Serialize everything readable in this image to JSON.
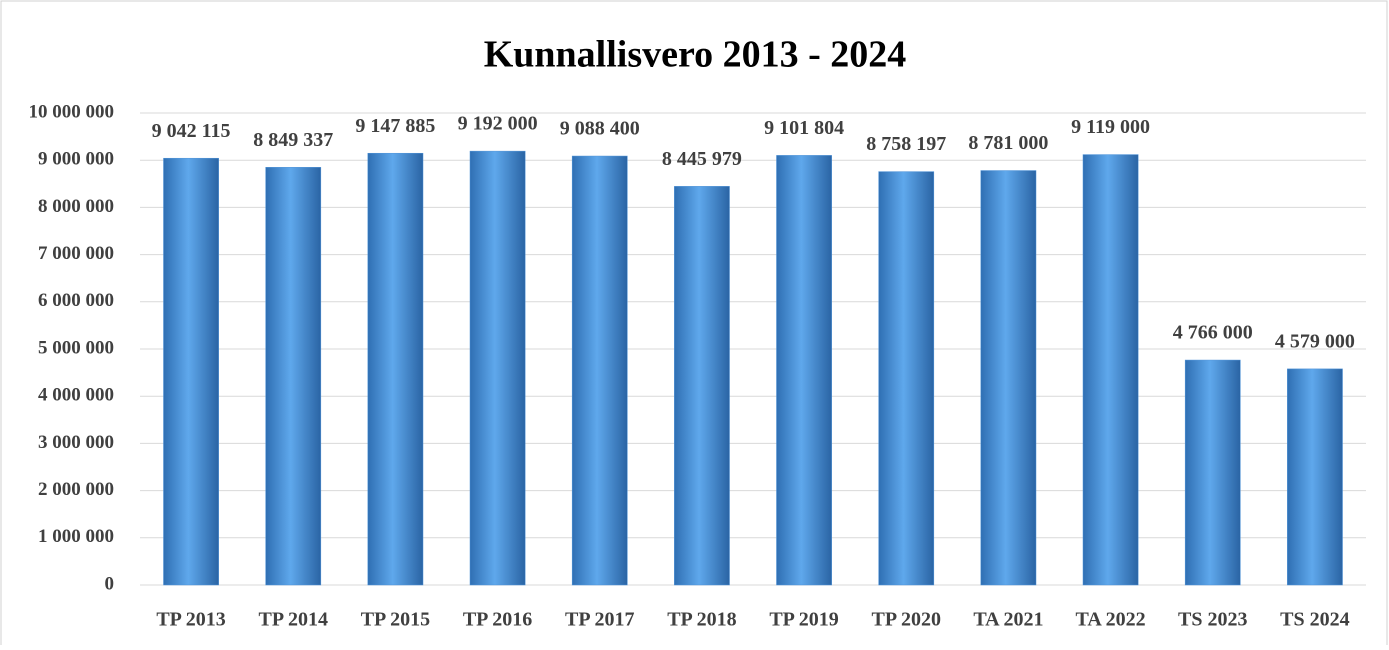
{
  "chart_data": {
    "type": "bar",
    "title": "Kunnallisvero 2013 - 2024",
    "categories": [
      "TP 2013",
      "TP 2014",
      "TP 2015",
      "TP 2016",
      "TP 2017",
      "TP 2018",
      "TP 2019",
      "TP 2020",
      "TA 2021",
      "TA 2022",
      "TS 2023",
      "TS 2024"
    ],
    "values": [
      9042115,
      8849337,
      9147885,
      9192000,
      9088400,
      8445979,
      9101804,
      8758197,
      8781000,
      9119000,
      4766000,
      4579000
    ],
    "value_labels": [
      "9 042 115",
      "8 849 337",
      "9 147 885",
      "9 192 000",
      "9 088 400",
      "8 445 979",
      "9 101 804",
      "8 758 197",
      "8 781 000",
      "9 119 000",
      "4 766 000",
      "4 579 000"
    ],
    "color": "#4f93d8",
    "ylim": [
      0,
      10000000
    ],
    "yticks": [
      0,
      {
        "value": 1000000,
        "label": "1 000 000"
      },
      {
        "value": 2000000,
        "label": "2 000 000"
      },
      {
        "value": 3000000,
        "label": "3 000 000"
      },
      {
        "value": 4000000,
        "label": "4 000 000"
      },
      {
        "value": 5000000,
        "label": "5 000 000"
      },
      {
        "value": 6000000,
        "label": "6 000 000"
      },
      {
        "value": 7000000,
        "label": "7 000 000"
      },
      {
        "value": 8000000,
        "label": "8 000 000"
      },
      {
        "value": 9000000,
        "label": "9 000 000"
      },
      {
        "value": 10000000,
        "label": "10 000 000"
      }
    ],
    "grid": true
  }
}
